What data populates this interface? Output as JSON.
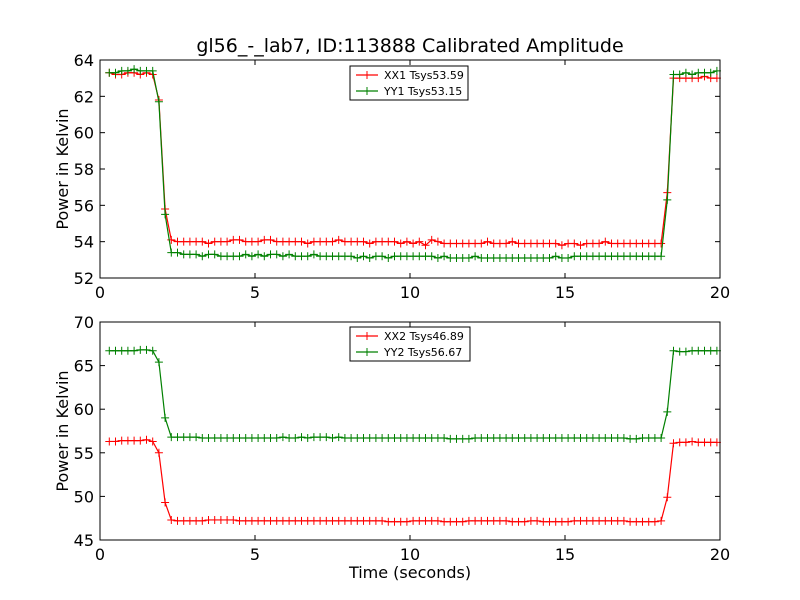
{
  "chart_data": [
    {
      "type": "line",
      "title": "gl56_-_lab7, ID:113888 Calibrated Amplitude",
      "xlabel": "",
      "ylabel": "Power in Kelvin",
      "xlim": [
        0,
        20
      ],
      "ylim": [
        52,
        64
      ],
      "xticks": [
        0,
        5,
        10,
        15,
        20
      ],
      "yticks": [
        52,
        54,
        56,
        58,
        60,
        62,
        64
      ],
      "grid": false,
      "legend_position": "top-center",
      "series": [
        {
          "name": "XX1 Tsys53.59",
          "color": "#ff0000",
          "x": [
            0.3,
            0.5,
            0.7,
            0.9,
            1.1,
            1.3,
            1.5,
            1.7,
            1.9,
            2.1,
            2.3,
            2.5,
            2.7,
            2.9,
            3.1,
            3.3,
            3.5,
            3.7,
            3.9,
            4.1,
            4.3,
            4.5,
            4.7,
            4.9,
            5.1,
            5.3,
            5.5,
            5.7,
            5.9,
            6.1,
            6.3,
            6.5,
            6.7,
            6.9,
            7.1,
            7.3,
            7.5,
            7.7,
            7.9,
            8.1,
            8.3,
            8.5,
            8.7,
            8.9,
            9.1,
            9.3,
            9.5,
            9.7,
            9.9,
            10.1,
            10.3,
            10.5,
            10.7,
            10.9,
            11.1,
            11.3,
            11.5,
            11.7,
            11.9,
            12.1,
            12.3,
            12.5,
            12.7,
            12.9,
            13.1,
            13.3,
            13.5,
            13.7,
            13.9,
            14.1,
            14.3,
            14.5,
            14.7,
            14.9,
            15.1,
            15.3,
            15.5,
            15.7,
            15.9,
            16.1,
            16.3,
            16.5,
            16.7,
            16.9,
            17.1,
            17.3,
            17.5,
            17.7,
            17.9,
            18.1,
            18.3,
            18.5,
            18.7,
            18.9,
            19.1,
            19.3,
            19.5,
            19.7,
            19.9
          ],
          "y": [
            63.3,
            63.2,
            63.2,
            63.3,
            63.3,
            63.2,
            63.3,
            63.2,
            61.8,
            55.8,
            54.1,
            54.0,
            54.0,
            54.0,
            54.0,
            54.0,
            53.9,
            54.0,
            54.0,
            54.0,
            54.1,
            54.1,
            54.0,
            54.0,
            54.0,
            54.1,
            54.1,
            54.0,
            54.0,
            54.0,
            54.0,
            54.0,
            53.9,
            54.0,
            54.0,
            54.0,
            54.0,
            54.1,
            54.0,
            54.0,
            54.0,
            54.0,
            53.9,
            54.0,
            54.0,
            54.0,
            54.0,
            53.9,
            54.0,
            53.9,
            54.0,
            53.8,
            54.1,
            54.0,
            53.9,
            53.9,
            53.9,
            53.9,
            53.9,
            53.9,
            53.9,
            54.0,
            53.9,
            53.9,
            53.9,
            54.0,
            53.9,
            53.9,
            53.9,
            53.9,
            53.9,
            53.9,
            53.9,
            53.8,
            53.9,
            53.9,
            53.8,
            53.9,
            53.9,
            53.9,
            54.0,
            53.9,
            53.9,
            53.9,
            53.9,
            53.9,
            53.9,
            53.9,
            53.9,
            53.9,
            56.7,
            63.0,
            63.0,
            63.0,
            63.0,
            63.0,
            63.1,
            63.0,
            63.0
          ]
        },
        {
          "name": "YY1 Tsys53.15",
          "color": "#008000",
          "x": [
            0.3,
            0.5,
            0.7,
            0.9,
            1.1,
            1.3,
            1.5,
            1.7,
            1.9,
            2.1,
            2.3,
            2.5,
            2.7,
            2.9,
            3.1,
            3.3,
            3.5,
            3.7,
            3.9,
            4.1,
            4.3,
            4.5,
            4.7,
            4.9,
            5.1,
            5.3,
            5.5,
            5.7,
            5.9,
            6.1,
            6.3,
            6.5,
            6.7,
            6.9,
            7.1,
            7.3,
            7.5,
            7.7,
            7.9,
            8.1,
            8.3,
            8.5,
            8.7,
            8.9,
            9.1,
            9.3,
            9.5,
            9.7,
            9.9,
            10.1,
            10.3,
            10.5,
            10.7,
            10.9,
            11.1,
            11.3,
            11.5,
            11.7,
            11.9,
            12.1,
            12.3,
            12.5,
            12.7,
            12.9,
            13.1,
            13.3,
            13.5,
            13.7,
            13.9,
            14.1,
            14.3,
            14.5,
            14.7,
            14.9,
            15.1,
            15.3,
            15.5,
            15.7,
            15.9,
            16.1,
            16.3,
            16.5,
            16.7,
            16.9,
            17.1,
            17.3,
            17.5,
            17.7,
            17.9,
            18.1,
            18.3,
            18.5,
            18.7,
            18.9,
            19.1,
            19.3,
            19.5,
            19.7,
            19.9
          ],
          "y": [
            63.3,
            63.3,
            63.4,
            63.4,
            63.5,
            63.4,
            63.4,
            63.4,
            61.7,
            55.5,
            53.4,
            53.4,
            53.3,
            53.3,
            53.3,
            53.2,
            53.3,
            53.3,
            53.2,
            53.2,
            53.2,
            53.2,
            53.3,
            53.2,
            53.3,
            53.2,
            53.3,
            53.3,
            53.2,
            53.3,
            53.2,
            53.2,
            53.2,
            53.3,
            53.2,
            53.2,
            53.2,
            53.2,
            53.2,
            53.2,
            53.1,
            53.2,
            53.1,
            53.2,
            53.2,
            53.1,
            53.2,
            53.2,
            53.2,
            53.2,
            53.2,
            53.2,
            53.2,
            53.1,
            53.2,
            53.1,
            53.1,
            53.1,
            53.1,
            53.2,
            53.1,
            53.1,
            53.1,
            53.1,
            53.1,
            53.1,
            53.1,
            53.1,
            53.1,
            53.1,
            53.1,
            53.1,
            53.2,
            53.1,
            53.1,
            53.2,
            53.2,
            53.2,
            53.2,
            53.2,
            53.2,
            53.2,
            53.2,
            53.2,
            53.2,
            53.2,
            53.2,
            53.2,
            53.2,
            53.2,
            56.3,
            63.2,
            63.2,
            63.3,
            63.2,
            63.3,
            63.3,
            63.3,
            63.4
          ]
        }
      ]
    },
    {
      "type": "line",
      "title": "",
      "xlabel": "Time (seconds)",
      "ylabel": "Power in Kelvin",
      "xlim": [
        0,
        20
      ],
      "ylim": [
        45,
        70
      ],
      "xticks": [
        0,
        5,
        10,
        15,
        20
      ],
      "yticks": [
        45,
        50,
        55,
        60,
        65,
        70
      ],
      "grid": false,
      "legend_position": "top-center",
      "series": [
        {
          "name": "XX2 Tsys46.89",
          "color": "#ff0000",
          "x": [
            0.3,
            0.5,
            0.7,
            0.9,
            1.1,
            1.3,
            1.5,
            1.7,
            1.9,
            2.1,
            2.3,
            2.5,
            2.7,
            2.9,
            3.1,
            3.3,
            3.5,
            3.7,
            3.9,
            4.1,
            4.3,
            4.5,
            4.7,
            4.9,
            5.1,
            5.3,
            5.5,
            5.7,
            5.9,
            6.1,
            6.3,
            6.5,
            6.7,
            6.9,
            7.1,
            7.3,
            7.5,
            7.7,
            7.9,
            8.1,
            8.3,
            8.5,
            8.7,
            8.9,
            9.1,
            9.3,
            9.5,
            9.7,
            9.9,
            10.1,
            10.3,
            10.5,
            10.7,
            10.9,
            11.1,
            11.3,
            11.5,
            11.7,
            11.9,
            12.1,
            12.3,
            12.5,
            12.7,
            12.9,
            13.1,
            13.3,
            13.5,
            13.7,
            13.9,
            14.1,
            14.3,
            14.5,
            14.7,
            14.9,
            15.1,
            15.3,
            15.5,
            15.7,
            15.9,
            16.1,
            16.3,
            16.5,
            16.7,
            16.9,
            17.1,
            17.3,
            17.5,
            17.7,
            17.9,
            18.1,
            18.3,
            18.5,
            18.7,
            18.9,
            19.1,
            19.3,
            19.5,
            19.7,
            19.9
          ],
          "y": [
            56.3,
            56.3,
            56.4,
            56.4,
            56.4,
            56.4,
            56.5,
            56.3,
            55.0,
            49.3,
            47.3,
            47.2,
            47.2,
            47.2,
            47.2,
            47.2,
            47.3,
            47.3,
            47.3,
            47.3,
            47.3,
            47.2,
            47.2,
            47.2,
            47.2,
            47.2,
            47.2,
            47.2,
            47.2,
            47.2,
            47.2,
            47.2,
            47.2,
            47.2,
            47.2,
            47.2,
            47.2,
            47.2,
            47.2,
            47.2,
            47.2,
            47.2,
            47.2,
            47.2,
            47.2,
            47.1,
            47.1,
            47.1,
            47.1,
            47.2,
            47.2,
            47.2,
            47.2,
            47.2,
            47.1,
            47.1,
            47.1,
            47.1,
            47.2,
            47.2,
            47.2,
            47.2,
            47.2,
            47.2,
            47.2,
            47.1,
            47.1,
            47.1,
            47.2,
            47.2,
            47.1,
            47.1,
            47.1,
            47.1,
            47.1,
            47.2,
            47.2,
            47.2,
            47.2,
            47.2,
            47.2,
            47.2,
            47.2,
            47.2,
            47.1,
            47.1,
            47.1,
            47.1,
            47.1,
            47.2,
            49.9,
            56.1,
            56.2,
            56.2,
            56.3,
            56.2,
            56.2,
            56.2,
            56.2
          ]
        },
        {
          "name": "YY2 Tsys56.67",
          "color": "#008000",
          "x": [
            0.3,
            0.5,
            0.7,
            0.9,
            1.1,
            1.3,
            1.5,
            1.7,
            1.9,
            2.1,
            2.3,
            2.5,
            2.7,
            2.9,
            3.1,
            3.3,
            3.5,
            3.7,
            3.9,
            4.1,
            4.3,
            4.5,
            4.7,
            4.9,
            5.1,
            5.3,
            5.5,
            5.7,
            5.9,
            6.1,
            6.3,
            6.5,
            6.7,
            6.9,
            7.1,
            7.3,
            7.5,
            7.7,
            7.9,
            8.1,
            8.3,
            8.5,
            8.7,
            8.9,
            9.1,
            9.3,
            9.5,
            9.7,
            9.9,
            10.1,
            10.3,
            10.5,
            10.7,
            10.9,
            11.1,
            11.3,
            11.5,
            11.7,
            11.9,
            12.1,
            12.3,
            12.5,
            12.7,
            12.9,
            13.1,
            13.3,
            13.5,
            13.7,
            13.9,
            14.1,
            14.3,
            14.5,
            14.7,
            14.9,
            15.1,
            15.3,
            15.5,
            15.7,
            15.9,
            16.1,
            16.3,
            16.5,
            16.7,
            16.9,
            17.1,
            17.3,
            17.5,
            17.7,
            17.9,
            18.1,
            18.3,
            18.5,
            18.7,
            18.9,
            19.1,
            19.3,
            19.5,
            19.7,
            19.9
          ],
          "y": [
            66.7,
            66.7,
            66.7,
            66.7,
            66.7,
            66.8,
            66.8,
            66.7,
            65.4,
            59.0,
            56.8,
            56.8,
            56.8,
            56.8,
            56.8,
            56.7,
            56.7,
            56.7,
            56.7,
            56.7,
            56.7,
            56.7,
            56.7,
            56.7,
            56.7,
            56.7,
            56.7,
            56.7,
            56.8,
            56.7,
            56.7,
            56.8,
            56.7,
            56.8,
            56.8,
            56.8,
            56.7,
            56.8,
            56.7,
            56.7,
            56.7,
            56.7,
            56.7,
            56.7,
            56.7,
            56.7,
            56.7,
            56.7,
            56.7,
            56.7,
            56.7,
            56.7,
            56.7,
            56.7,
            56.7,
            56.6,
            56.6,
            56.6,
            56.6,
            56.7,
            56.7,
            56.7,
            56.7,
            56.7,
            56.7,
            56.7,
            56.7,
            56.7,
            56.7,
            56.7,
            56.7,
            56.7,
            56.7,
            56.7,
            56.7,
            56.7,
            56.7,
            56.7,
            56.7,
            56.7,
            56.7,
            56.7,
            56.7,
            56.7,
            56.6,
            56.6,
            56.7,
            56.7,
            56.7,
            56.7,
            59.7,
            66.7,
            66.6,
            66.6,
            66.7,
            66.7,
            66.7,
            66.7,
            66.7
          ]
        }
      ]
    }
  ]
}
